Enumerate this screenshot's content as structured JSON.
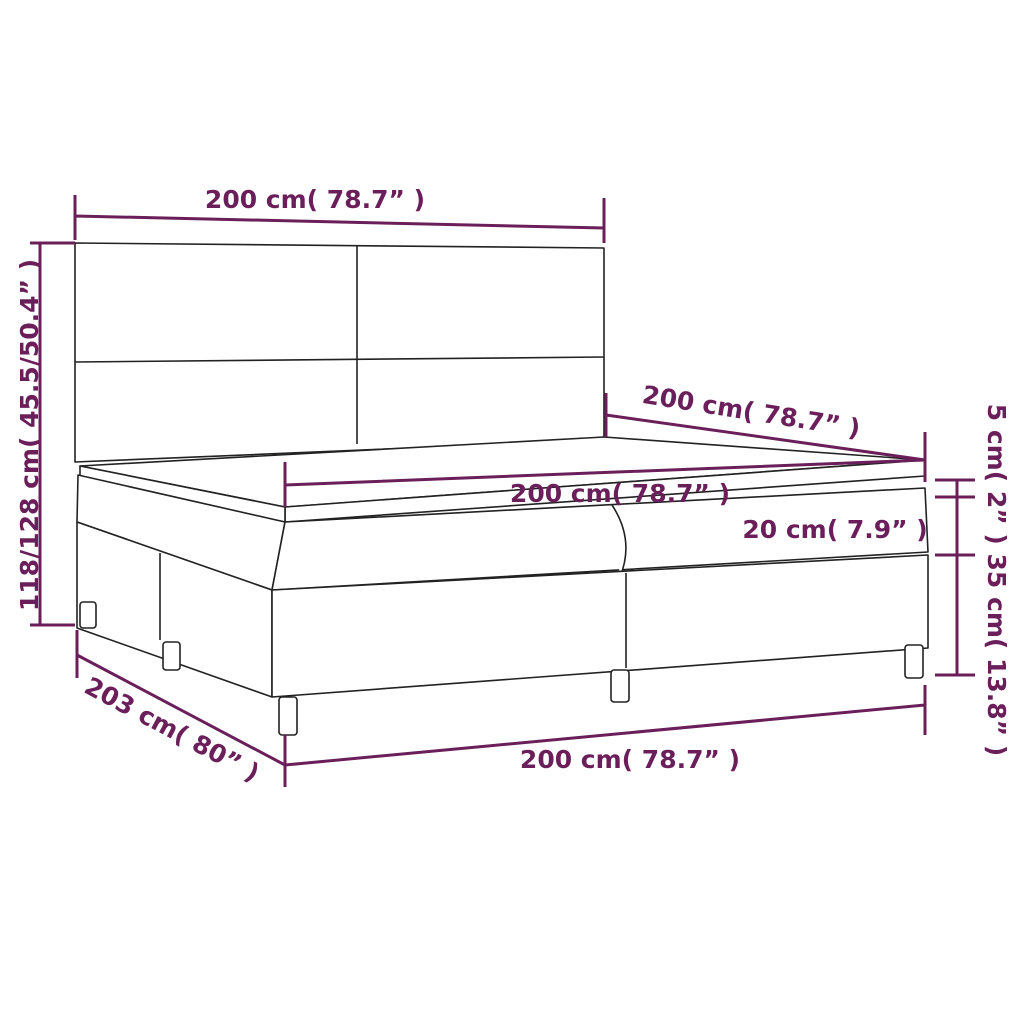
{
  "colors": {
    "dimension": "#6b1f5a",
    "outline": "#222222"
  },
  "labels": {
    "headboard_width": "200 cm( 78.7” )",
    "total_height": "118/128 cm( 45.5/50.4” )",
    "length": "200 cm( 78.7” )",
    "mattress_width": "200 cm( 78.7” )",
    "mattress_height": "20 cm( 7.9” )",
    "topper_and_base_height": "5 cm( 2” ) 35 cm( 13.8” )",
    "front_width": "200 cm( 78.7” )",
    "depth": "203 cm( 80” )"
  }
}
